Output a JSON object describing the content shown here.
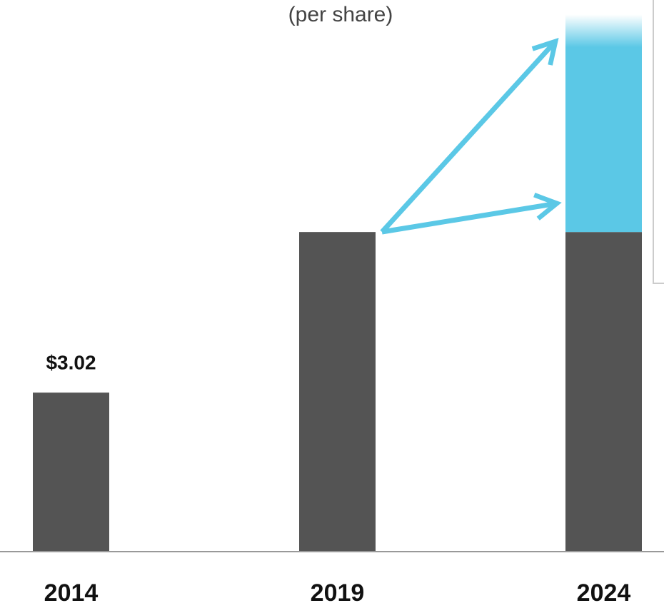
{
  "chart_data": {
    "type": "bar",
    "title": "(per share)",
    "categories": [
      "2014",
      "2019",
      "2024"
    ],
    "series": [
      {
        "color": "#545454",
        "values": [
          3.02,
          6.07,
          6.07
        ],
        "value_labels": [
          "$3.02",
          null,
          null
        ]
      },
      {
        "color": "#5bc8e6",
        "values": [
          null,
          null,
          4.13
        ]
      }
    ],
    "ylim": [
      0,
      10.45
    ]
  }
}
